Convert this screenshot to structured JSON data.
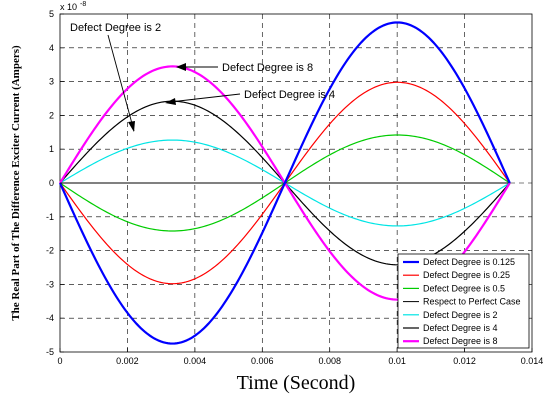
{
  "chart_data": {
    "type": "line",
    "xlabel": "Time (Second)",
    "ylabel": "The Real Part of The Difference Exciter Current (Ampers)",
    "y_multiplier": "x 10",
    "y_exponent": "-8",
    "xlim": [
      0,
      0.014
    ],
    "ylim": [
      -5,
      5
    ],
    "x_ticks": [
      "0",
      "0.002",
      "0.004",
      "0.006",
      "0.008",
      "0.01",
      "0.012",
      "0.014"
    ],
    "y_ticks": [
      "-5",
      "-4",
      "-3",
      "-2",
      "-1",
      "0",
      "1",
      "2",
      "3",
      "4",
      "5"
    ],
    "grid": true,
    "legend_position": "bottom-right",
    "period": 0.01334,
    "series": [
      {
        "name": "Defect Degree is 0.125",
        "color": "#0000ff",
        "amplitude": -4.75,
        "width": 2.2
      },
      {
        "name": "Defect Degree is 0.25",
        "color": "#ff0000",
        "amplitude": -2.98,
        "width": 1.2
      },
      {
        "name": "Defect Degree is 0.5",
        "color": "#00cc00",
        "amplitude": -1.42,
        "width": 1.2
      },
      {
        "name": "Respect to Perfect Case",
        "color": "#000000",
        "amplitude": 0,
        "width": 1.0
      },
      {
        "name": "Defect Degree is 2",
        "color": "#00e5e5",
        "amplitude": 1.27,
        "width": 1.2
      },
      {
        "name": "Defect Degree is 4",
        "color": "#000000",
        "amplitude": 2.42,
        "width": 1.2
      },
      {
        "name": "Defect Degree is 8",
        "color": "#ff00ff",
        "amplitude": 3.45,
        "width": 2.2
      }
    ],
    "annotations": [
      {
        "text": "Defect Degree is 2"
      },
      {
        "text": "Defect Degree is 8"
      },
      {
        "text": "Defect Degree is 4"
      }
    ]
  }
}
